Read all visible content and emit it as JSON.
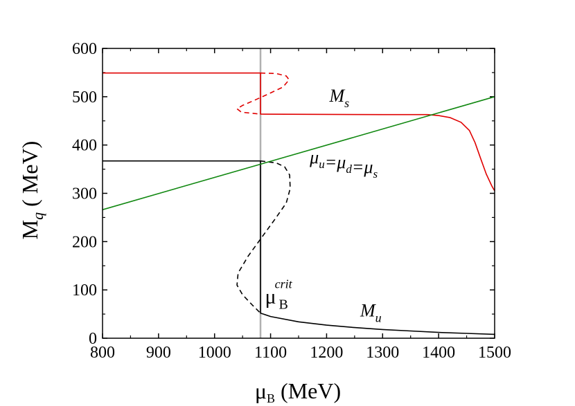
{
  "chart_data": {
    "type": "line",
    "xlabel": {
      "main": "μ",
      "sub": "B",
      "rest": " (MeV)"
    },
    "ylabel": {
      "main": "M",
      "sub": "q",
      "rest": " ( MeV)"
    },
    "xlim": [
      800,
      1500
    ],
    "ylim": [
      0,
      600
    ],
    "xticks": [
      800,
      900,
      1000,
      1100,
      1200,
      1300,
      1400,
      1500
    ],
    "yticks": [
      0,
      100,
      200,
      300,
      400,
      500,
      600
    ],
    "grid": false,
    "critical_line": {
      "x": 1082,
      "color": "#b0b0b0"
    },
    "series": [
      {
        "key": "ms_stable",
        "color": "#e00000",
        "dash": false,
        "points": [
          [
            800,
            549
          ],
          [
            1082,
            549
          ],
          [
            1082,
            464
          ],
          [
            1300,
            463
          ],
          [
            1350,
            463
          ],
          [
            1380,
            463
          ],
          [
            1400,
            461
          ],
          [
            1420,
            457
          ],
          [
            1440,
            447
          ],
          [
            1455,
            430
          ],
          [
            1465,
            405
          ],
          [
            1475,
            372
          ],
          [
            1485,
            340
          ],
          [
            1495,
            315
          ],
          [
            1500,
            305
          ]
        ]
      },
      {
        "key": "ms_unstable",
        "color": "#e00000",
        "dash": true,
        "points": [
          [
            1082,
            549
          ],
          [
            1110,
            548
          ],
          [
            1128,
            543
          ],
          [
            1133,
            535
          ],
          [
            1122,
            520
          ],
          [
            1095,
            505
          ],
          [
            1070,
            492
          ],
          [
            1050,
            482
          ],
          [
            1040,
            475
          ],
          [
            1048,
            468
          ],
          [
            1082,
            464
          ]
        ]
      },
      {
        "key": "mu_stable",
        "color": "#000000",
        "dash": false,
        "points": [
          [
            800,
            367
          ],
          [
            1082,
            367
          ],
          [
            1082,
            52
          ],
          [
            1100,
            45
          ],
          [
            1150,
            34
          ],
          [
            1200,
            27
          ],
          [
            1250,
            22
          ],
          [
            1300,
            18
          ],
          [
            1350,
            15
          ],
          [
            1400,
            12
          ],
          [
            1450,
            10
          ],
          [
            1500,
            8
          ]
        ]
      },
      {
        "key": "mu_unstable",
        "color": "#000000",
        "dash": true,
        "points": [
          [
            1082,
            367
          ],
          [
            1110,
            363
          ],
          [
            1125,
            355
          ],
          [
            1134,
            338
          ],
          [
            1135,
            310
          ],
          [
            1128,
            280
          ],
          [
            1110,
            250
          ],
          [
            1085,
            210
          ],
          [
            1060,
            170
          ],
          [
            1042,
            135
          ],
          [
            1040,
            110
          ],
          [
            1050,
            90
          ],
          [
            1068,
            68
          ],
          [
            1082,
            52
          ]
        ]
      },
      {
        "key": "mu_equal",
        "color": "#118811",
        "dash": false,
        "points": [
          [
            800,
            266
          ],
          [
            1500,
            500
          ]
        ]
      }
    ],
    "annotations": [
      {
        "key": "ms_label",
        "main": "M",
        "sub": "s",
        "color": "#e00000",
        "x": 1205,
        "y": 490
      },
      {
        "key": "mu_label",
        "main": "M",
        "sub": "u",
        "color": "#000000",
        "x": 1260,
        "y": 45
      },
      {
        "key": "mueq_label",
        "color": "#118811",
        "x": 1170,
        "y": 362,
        "parts": [
          {
            "t": "μ",
            "sub": "u"
          },
          {
            "t": "=μ",
            "sub": "d"
          },
          {
            "t": "=μ",
            "sub": "s"
          }
        ]
      },
      {
        "key": "crit_label",
        "main": "μ",
        "sub": "B",
        "sup": "crit",
        "color": "#555555",
        "x": 1090,
        "y": 72
      }
    ]
  }
}
